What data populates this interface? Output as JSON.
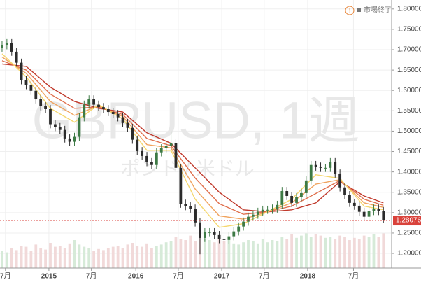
{
  "chart_data": {
    "type": "candlestick",
    "watermark": "GBPUSD, 1週",
    "watermark_subtitle": "ポンド / 米ドル",
    "status": "市場終了",
    "up_color": "#3d7a45",
    "down_color": "#2b2b2b",
    "open": [
      1.705,
      1.711,
      1.716,
      1.695,
      1.668,
      1.625,
      1.613,
      1.599,
      1.578,
      1.561,
      1.554,
      1.517,
      1.51,
      1.503,
      1.482,
      1.474,
      1.486,
      1.534,
      1.565,
      1.578,
      1.565,
      1.559,
      1.554,
      1.547,
      1.542,
      1.534,
      1.52,
      1.508,
      1.479,
      1.451,
      1.439,
      1.424,
      1.417,
      1.448,
      1.458,
      1.463,
      1.47,
      1.41,
      1.322,
      1.316,
      1.31,
      1.276,
      1.238,
      1.252,
      1.252,
      1.245,
      1.235,
      1.233,
      1.242,
      1.254,
      1.266,
      1.278,
      1.29,
      1.295,
      1.302,
      1.307,
      1.307,
      1.31,
      1.319,
      1.353,
      1.341,
      1.324,
      1.338,
      1.348,
      1.379,
      1.417,
      1.413,
      1.41,
      1.41,
      1.424,
      1.396,
      1.362,
      1.343,
      1.324,
      1.317,
      1.302,
      1.29,
      1.304,
      1.31,
      1.304
    ],
    "high": [
      1.721,
      1.726,
      1.726,
      1.705,
      1.678,
      1.635,
      1.623,
      1.609,
      1.588,
      1.571,
      1.564,
      1.527,
      1.52,
      1.513,
      1.492,
      1.496,
      1.544,
      1.575,
      1.588,
      1.588,
      1.575,
      1.569,
      1.564,
      1.557,
      1.552,
      1.544,
      1.53,
      1.518,
      1.489,
      1.461,
      1.449,
      1.434,
      1.458,
      1.468,
      1.473,
      1.5,
      1.48,
      1.42,
      1.332,
      1.326,
      1.32,
      1.286,
      1.262,
      1.262,
      1.262,
      1.255,
      1.245,
      1.252,
      1.264,
      1.276,
      1.288,
      1.3,
      1.305,
      1.312,
      1.317,
      1.317,
      1.32,
      1.329,
      1.363,
      1.363,
      1.351,
      1.348,
      1.358,
      1.389,
      1.427,
      1.427,
      1.423,
      1.42,
      1.434,
      1.434,
      1.406,
      1.372,
      1.353,
      1.334,
      1.327,
      1.312,
      1.314,
      1.32,
      1.32,
      1.314
    ],
    "low": [
      1.695,
      1.701,
      1.685,
      1.658,
      1.615,
      1.603,
      1.589,
      1.568,
      1.551,
      1.544,
      1.507,
      1.5,
      1.493,
      1.472,
      1.464,
      1.464,
      1.476,
      1.524,
      1.555,
      1.555,
      1.549,
      1.544,
      1.537,
      1.532,
      1.524,
      1.51,
      1.498,
      1.469,
      1.441,
      1.429,
      1.414,
      1.407,
      1.407,
      1.438,
      1.448,
      1.453,
      1.4,
      1.312,
      1.306,
      1.3,
      1.266,
      1.198,
      1.228,
      1.242,
      1.235,
      1.225,
      1.223,
      1.223,
      1.232,
      1.244,
      1.256,
      1.268,
      1.28,
      1.285,
      1.292,
      1.297,
      1.297,
      1.3,
      1.309,
      1.331,
      1.314,
      1.314,
      1.328,
      1.338,
      1.369,
      1.403,
      1.4,
      1.4,
      1.4,
      1.386,
      1.352,
      1.333,
      1.314,
      1.307,
      1.292,
      1.28,
      1.28,
      1.294,
      1.294,
      1.275
    ],
    "close": [
      1.711,
      1.716,
      1.695,
      1.668,
      1.625,
      1.613,
      1.599,
      1.578,
      1.561,
      1.554,
      1.517,
      1.51,
      1.503,
      1.482,
      1.474,
      1.486,
      1.534,
      1.565,
      1.578,
      1.565,
      1.559,
      1.554,
      1.547,
      1.542,
      1.534,
      1.52,
      1.508,
      1.479,
      1.451,
      1.439,
      1.424,
      1.417,
      1.448,
      1.458,
      1.463,
      1.47,
      1.41,
      1.322,
      1.316,
      1.31,
      1.276,
      1.238,
      1.252,
      1.252,
      1.245,
      1.235,
      1.233,
      1.242,
      1.254,
      1.266,
      1.278,
      1.29,
      1.295,
      1.302,
      1.307,
      1.307,
      1.31,
      1.319,
      1.353,
      1.341,
      1.324,
      1.338,
      1.348,
      1.379,
      1.417,
      1.413,
      1.41,
      1.41,
      1.424,
      1.396,
      1.362,
      1.343,
      1.324,
      1.317,
      1.302,
      1.29,
      1.304,
      1.31,
      1.304,
      1.281
    ],
    "volume": [
      30,
      28,
      35,
      32,
      40,
      38,
      30,
      42,
      36,
      33,
      45,
      38,
      40,
      35,
      44,
      50,
      42,
      38,
      36,
      30,
      34,
      32,
      35,
      38,
      40,
      36,
      42,
      45,
      40,
      38,
      44,
      36,
      40,
      42,
      46,
      48,
      55,
      52,
      50,
      58,
      48,
      60,
      52,
      50,
      46,
      54,
      48,
      50,
      44,
      42,
      46,
      50,
      48,
      44,
      52,
      46,
      50,
      48,
      55,
      52,
      60,
      54,
      58,
      62,
      56,
      60,
      58,
      54,
      56,
      52,
      58,
      55,
      50,
      54,
      52,
      58,
      56,
      60,
      55,
      62
    ],
    "vlim": [
      0,
      100
    ],
    "ribbon_x": [
      0,
      5,
      10,
      15,
      20,
      25,
      30,
      35,
      40,
      45,
      50,
      55,
      60,
      65,
      70,
      75,
      79
    ],
    "ribbon": [
      {
        "color": "#c0392b",
        "values": [
          1.665,
          1.659,
          1.608,
          1.573,
          1.556,
          1.547,
          1.496,
          1.47,
          1.41,
          1.35,
          1.307,
          1.302,
          1.307,
          1.324,
          1.376,
          1.341,
          1.324
        ]
      },
      {
        "color": "#e0704e",
        "values": [
          1.673,
          1.65,
          1.591,
          1.556,
          1.559,
          1.541,
          1.482,
          1.464,
          1.385,
          1.322,
          1.296,
          1.302,
          1.316,
          1.347,
          1.379,
          1.333,
          1.318
        ]
      },
      {
        "color": "#f0a35e",
        "values": [
          1.682,
          1.642,
          1.573,
          1.539,
          1.562,
          1.536,
          1.467,
          1.459,
          1.358,
          1.292,
          1.284,
          1.302,
          1.324,
          1.37,
          1.381,
          1.324,
          1.313
        ]
      },
      {
        "color": "#f5d76e",
        "values": [
          1.69,
          1.633,
          1.556,
          1.522,
          1.565,
          1.53,
          1.453,
          1.453,
          1.333,
          1.264,
          1.273,
          1.302,
          1.333,
          1.393,
          1.384,
          1.316,
          1.307
        ]
      }
    ],
    "xlim": [
      -0.43,
      80.7
    ],
    "xticks": [
      {
        "value": 0.7,
        "label": "7月"
      },
      {
        "value": 9.7,
        "label": "2015"
      },
      {
        "value": 18.5,
        "label": "7月"
      },
      {
        "value": 27.7,
        "label": "2016"
      },
      {
        "value": 36.5,
        "label": "7月"
      },
      {
        "value": 45.5,
        "label": "2017"
      },
      {
        "value": 54.3,
        "label": "7月"
      },
      {
        "value": 63.3,
        "label": "2018"
      },
      {
        "value": 72.8,
        "label": "7月"
      }
    ],
    "ylim": [
      1.164,
      1.822
    ],
    "yticks": [
      {
        "value": 1.2,
        "label": "1.20000"
      },
      {
        "value": 1.25,
        "label": "1.25000"
      },
      {
        "value": 1.3,
        "label": "1.30000"
      },
      {
        "value": 1.35,
        "label": "1.35000"
      },
      {
        "value": 1.4,
        "label": "1.40000"
      },
      {
        "value": 1.45,
        "label": "1.45000"
      },
      {
        "value": 1.5,
        "label": "1.50000"
      },
      {
        "value": 1.55,
        "label": "1.55000"
      },
      {
        "value": 1.6,
        "label": "1.60000"
      },
      {
        "value": 1.65,
        "label": "1.65000"
      },
      {
        "value": 1.7,
        "label": "1.70000"
      },
      {
        "value": 1.75,
        "label": "1.75000"
      },
      {
        "value": 1.8,
        "label": "1.80000"
      }
    ],
    "grid": true,
    "last_price": 1.28076,
    "last_price_color": "#d9423b"
  }
}
